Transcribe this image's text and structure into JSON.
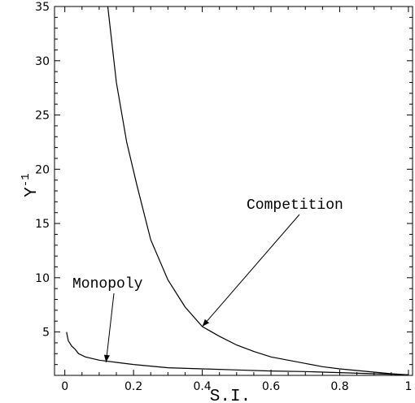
{
  "chart_data": {
    "type": "line",
    "xlabel": "S.I.",
    "ylabel": "Y",
    "ylabel_superscript": "-1",
    "xlim": [
      0,
      1
    ],
    "ylim": [
      1,
      35
    ],
    "x_ticks": [
      0,
      0.2,
      0.4,
      0.6,
      0.8,
      1
    ],
    "x_tick_labels": [
      "0",
      "0.2",
      "0.4",
      "0.6",
      "0.8",
      "1"
    ],
    "y_ticks": [
      5,
      10,
      15,
      20,
      25,
      30,
      35
    ],
    "y_tick_labels": [
      "5",
      "10",
      "15",
      "20",
      "25",
      "30",
      "35"
    ],
    "grid": false,
    "series": [
      {
        "name": "Competition",
        "x": [
          0.125,
          0.15,
          0.18,
          0.21,
          0.25,
          0.3,
          0.35,
          0.4,
          0.45,
          0.5,
          0.55,
          0.6,
          0.65,
          0.7,
          0.75,
          0.8,
          0.85,
          0.9,
          0.95,
          1.0
        ],
        "y": [
          35,
          28,
          22.5,
          18.5,
          13.5,
          9.8,
          7.3,
          5.5,
          4.6,
          3.8,
          3.2,
          2.7,
          2.4,
          2.1,
          1.8,
          1.6,
          1.45,
          1.3,
          1.15,
          1.05
        ]
      },
      {
        "name": "Monopoly",
        "x": [
          0.005,
          0.01,
          0.02,
          0.03,
          0.04,
          0.06,
          0.1,
          0.15,
          0.2,
          0.3,
          0.4,
          0.5,
          0.6,
          0.7,
          0.8,
          0.9,
          1.0
        ],
        "y": [
          5.0,
          4.2,
          3.7,
          3.4,
          3.0,
          2.7,
          2.4,
          2.2,
          2.0,
          1.7,
          1.6,
          1.5,
          1.4,
          1.35,
          1.25,
          1.15,
          1.05
        ]
      }
    ],
    "annotations": [
      {
        "text": "Competition",
        "target": [
          0.4,
          5.5
        ]
      },
      {
        "text": "Monopoly",
        "target": [
          0.12,
          2.2
        ]
      }
    ]
  }
}
